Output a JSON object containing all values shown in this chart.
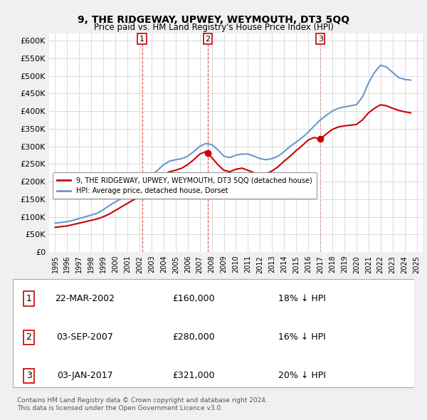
{
  "title": "9, THE RIDGEWAY, UPWEY, WEYMOUTH, DT3 5QQ",
  "subtitle": "Price paid vs. HM Land Registry's House Price Index (HPI)",
  "ylabel_fmt": "£{0}K",
  "yticks": [
    0,
    50000,
    100000,
    150000,
    200000,
    250000,
    300000,
    350000,
    400000,
    450000,
    500000,
    550000,
    600000
  ],
  "ytick_labels": [
    "£0",
    "£50K",
    "£100K",
    "£150K",
    "£200K",
    "£250K",
    "£300K",
    "£350K",
    "£400K",
    "£450K",
    "£500K",
    "£550K",
    "£600K"
  ],
  "background_color": "#f0f0f0",
  "plot_bg_color": "#ffffff",
  "grid_color": "#cccccc",
  "hpi_color": "#6699cc",
  "price_color": "#cc0000",
  "sale_marker_color": "#cc0000",
  "sale_label_color": "#cc0000",
  "legend_label_price": "9, THE RIDGEWAY, UPWEY, WEYMOUTH, DT3 5QQ (detached house)",
  "legend_label_hpi": "HPI: Average price, detached house, Dorset",
  "transactions": [
    {
      "label": "1",
      "date": "22-MAR-2002",
      "price": 160000,
      "pct": "18%",
      "dir": "↓",
      "x": 2002.22
    },
    {
      "label": "2",
      "date": "03-SEP-2007",
      "price": 280000,
      "pct": "16%",
      "dir": "↓",
      "x": 2007.67
    },
    {
      "label": "3",
      "date": "03-JAN-2017",
      "price": 321000,
      "pct": "20%",
      "dir": "↓",
      "x": 2017.01
    }
  ],
  "table_rows": [
    {
      "num": "1",
      "date": "22-MAR-2002",
      "price": "£160,000",
      "pct": "18% ↓ HPI"
    },
    {
      "num": "2",
      "date": "03-SEP-2007",
      "price": "£280,000",
      "pct": "16% ↓ HPI"
    },
    {
      "num": "3",
      "date": "03-JAN-2017",
      "price": "£321,000",
      "pct": "20% ↓ HPI"
    }
  ],
  "footnote": "Contains HM Land Registry data © Crown copyright and database right 2024.\nThis data is licensed under the Open Government Licence v3.0.",
  "hpi_x": [
    1995.0,
    1995.5,
    1996.0,
    1996.5,
    1997.0,
    1997.5,
    1998.0,
    1998.5,
    1999.0,
    1999.5,
    2000.0,
    2000.5,
    2001.0,
    2001.5,
    2002.0,
    2002.5,
    2003.0,
    2003.5,
    2004.0,
    2004.5,
    2005.0,
    2005.5,
    2006.0,
    2006.5,
    2007.0,
    2007.5,
    2008.0,
    2008.5,
    2009.0,
    2009.5,
    2010.0,
    2010.5,
    2011.0,
    2011.5,
    2012.0,
    2012.5,
    2013.0,
    2013.5,
    2014.0,
    2014.5,
    2015.0,
    2015.5,
    2016.0,
    2016.5,
    2017.0,
    2017.5,
    2018.0,
    2018.5,
    2019.0,
    2019.5,
    2020.0,
    2020.5,
    2021.0,
    2021.5,
    2022.0,
    2022.5,
    2023.0,
    2023.5,
    2024.0,
    2024.5
  ],
  "hpi_y": [
    82000,
    84000,
    86000,
    90000,
    95000,
    100000,
    105000,
    110000,
    120000,
    132000,
    142000,
    152000,
    162000,
    175000,
    188000,
    202000,
    218000,
    232000,
    248000,
    258000,
    262000,
    265000,
    272000,
    285000,
    300000,
    308000,
    305000,
    290000,
    272000,
    268000,
    275000,
    278000,
    278000,
    272000,
    265000,
    262000,
    265000,
    272000,
    285000,
    300000,
    312000,
    325000,
    340000,
    358000,
    375000,
    388000,
    400000,
    408000,
    412000,
    415000,
    418000,
    440000,
    480000,
    510000,
    530000,
    525000,
    510000,
    495000,
    490000,
    488000
  ],
  "price_x": [
    1995.0,
    1995.5,
    1996.0,
    1996.5,
    1997.0,
    1997.5,
    1998.0,
    1998.5,
    1999.0,
    1999.5,
    2000.0,
    2000.5,
    2001.0,
    2001.5,
    2002.0,
    2002.22,
    2002.5,
    2003.0,
    2003.5,
    2004.0,
    2004.5,
    2005.0,
    2005.5,
    2006.0,
    2006.5,
    2007.0,
    2007.5,
    2007.67,
    2008.0,
    2008.5,
    2009.0,
    2009.5,
    2010.0,
    2010.5,
    2011.0,
    2011.5,
    2012.0,
    2012.5,
    2013.0,
    2013.5,
    2014.0,
    2014.5,
    2015.0,
    2015.5,
    2016.0,
    2016.5,
    2017.0,
    2017.01,
    2017.5,
    2018.0,
    2018.5,
    2019.0,
    2019.5,
    2020.0,
    2020.5,
    2021.0,
    2021.5,
    2022.0,
    2022.5,
    2023.0,
    2023.5,
    2024.0,
    2024.5
  ],
  "price_y": [
    70000,
    72000,
    74000,
    78000,
    82000,
    86000,
    90000,
    94000,
    100000,
    108000,
    118000,
    128000,
    138000,
    148000,
    158000,
    160000,
    172000,
    188000,
    205000,
    220000,
    228000,
    232000,
    238000,
    248000,
    262000,
    278000,
    285000,
    280000,
    268000,
    248000,
    232000,
    228000,
    235000,
    238000,
    232000,
    225000,
    220000,
    222000,
    230000,
    242000,
    258000,
    272000,
    288000,
    302000,
    318000,
    325000,
    321000,
    321000,
    335000,
    348000,
    355000,
    358000,
    360000,
    362000,
    375000,
    395000,
    408000,
    418000,
    415000,
    408000,
    402000,
    398000,
    395000
  ],
  "xlim": [
    1994.5,
    2025.5
  ],
  "ylim": [
    0,
    620000
  ]
}
